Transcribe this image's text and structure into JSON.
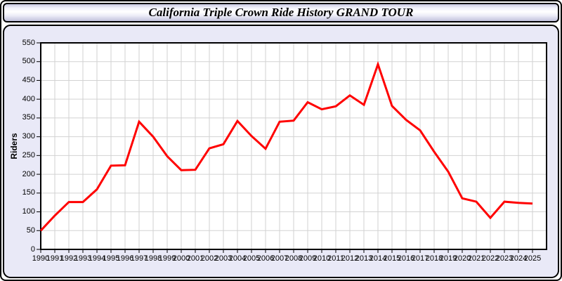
{
  "header": {
    "title": "California Triple Crown Ride History GRAND TOUR"
  },
  "panel": {
    "background": "#e9e9f7",
    "border_color": "#000000"
  },
  "chart_data": {
    "type": "line",
    "title": "California Triple Crown Ride History GRAND TOUR",
    "xlabel": "",
    "ylabel": "Riders",
    "ylim": [
      0,
      550
    ],
    "ytick_step": 50,
    "grid": true,
    "legend": "none",
    "line_color": "#ff0000",
    "plot_background": "#ffffff",
    "grid_color": "#d2d2d2",
    "axis_color": "#000000",
    "categories": [
      "1990",
      "1991",
      "1992",
      "1993",
      "1994",
      "1995",
      "1996",
      "1997",
      "1998",
      "1999",
      "2000",
      "2001",
      "2002",
      "2003",
      "2004",
      "2005",
      "2006",
      "2007",
      "2008",
      "2009",
      "2010",
      "2011",
      "2012",
      "2013",
      "2014",
      "2015",
      "2016",
      "2017",
      "2018",
      "2019",
      "2020",
      "2021",
      "2022",
      "2023",
      "2024",
      "2025"
    ],
    "values": [
      50,
      90,
      126,
      126,
      160,
      223,
      224,
      340,
      300,
      248,
      211,
      212,
      269,
      280,
      342,
      302,
      268,
      340,
      343,
      392,
      373,
      381,
      410,
      385,
      493,
      382,
      345,
      317,
      260,
      207,
      136,
      127,
      84,
      127,
      124,
      122
    ]
  }
}
